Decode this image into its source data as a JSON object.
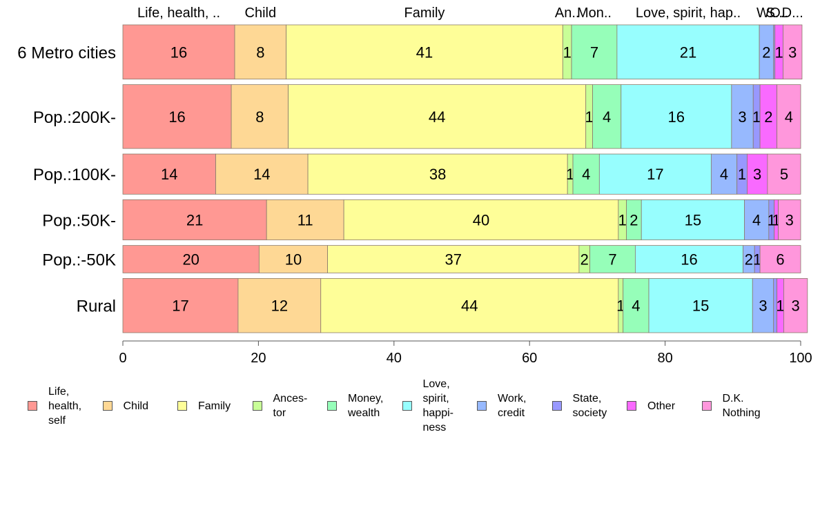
{
  "chart_data": {
    "type": "bar",
    "orientation": "horizontal",
    "stacked": true,
    "title": "",
    "xlabel": "",
    "ylabel": "",
    "xlim": [
      0,
      100
    ],
    "x_ticks": [
      "0",
      "20",
      "40",
      "60",
      "80",
      "100"
    ],
    "top_labels": [
      "Life, health, ..",
      "Child",
      "Family",
      "An..",
      "Mon..",
      "Love, spirit, hap..",
      "W..",
      "S..",
      "O..",
      "D..."
    ],
    "categories": [
      "6 Metro cities",
      "Pop.:200K-",
      "Pop.:100K-",
      "Pop.:50K-",
      "Pop.:-50K",
      "Rural"
    ],
    "bar_relative_widths": [
      85,
      100,
      63,
      63,
      43,
      85
    ],
    "series": [
      {
        "name": "Life, health, self",
        "legend": "Life,\nhealth,\nself",
        "color": "#FF9893",
        "values": [
          16.5,
          16.0,
          13.7,
          21.2,
          20.1,
          17.0
        ],
        "labels": [
          "16",
          "16",
          "14",
          "21",
          "20",
          "17"
        ]
      },
      {
        "name": "Child",
        "legend": "Child",
        "color": "#FED895",
        "values": [
          7.6,
          8.4,
          13.6,
          11.4,
          10.1,
          12.2
        ],
        "labels": [
          "8",
          "8",
          "14",
          "11",
          "10",
          "12"
        ]
      },
      {
        "name": "Family",
        "legend": "Family",
        "color": "#FEFE98",
        "values": [
          40.8,
          43.9,
          38.3,
          40.5,
          37.1,
          43.9
        ],
        "labels": [
          "41",
          "44",
          "38",
          "40",
          "37",
          "44"
        ]
      },
      {
        "name": "Ancestor",
        "legend": "Ances-\ntor",
        "color": "#C8FE97",
        "values": [
          1.3,
          1.0,
          0.8,
          1.2,
          1.6,
          0.7
        ],
        "labels": [
          "1",
          "1",
          "1",
          "1",
          "2",
          "1"
        ]
      },
      {
        "name": "Money, wealth",
        "legend": "Money,\nwealth",
        "color": "#96FEB9",
        "values": [
          6.7,
          4.2,
          3.9,
          2.2,
          6.7,
          3.8
        ],
        "labels": [
          "7",
          "4",
          "4",
          "2",
          "7",
          "4"
        ]
      },
      {
        "name": "Love, spirit, happiness",
        "legend": "Love,\nspirit,\nhappi-\nness",
        "color": "#97FEFE",
        "values": [
          21.0,
          16.3,
          16.5,
          15.2,
          15.9,
          15.3
        ],
        "labels": [
          "21",
          "16",
          "17",
          "15",
          "16",
          "15"
        ]
      },
      {
        "name": "Work, credit",
        "legend": "Work,\ncredit",
        "color": "#97B9FE",
        "values": [
          2.1,
          3.2,
          3.8,
          3.6,
          1.7,
          3.1
        ],
        "labels": [
          "2",
          "3",
          "4",
          "4",
          "2",
          "3"
        ]
      },
      {
        "name": "State, society",
        "legend": "State,\nsociety",
        "color": "#9898FE",
        "values": [
          0.2,
          1.0,
          1.5,
          0.8,
          0.8,
          0.5
        ],
        "labels": [
          "",
          "1",
          "1",
          "1",
          "1",
          ""
        ]
      },
      {
        "name": "Other",
        "legend": "Other",
        "color": "#F96AFF",
        "values": [
          1.2,
          2.5,
          3.0,
          0.6,
          0.0,
          1.0
        ],
        "labels": [
          "1",
          "2",
          "3",
          "1",
          "",
          "1"
        ]
      },
      {
        "name": "D.K. Nothing",
        "legend": "D.K.\nNothing",
        "color": "#FF97DC",
        "values": [
          2.8,
          3.5,
          4.9,
          3.3,
          6.0,
          3.5
        ],
        "labels": [
          "3",
          "4",
          "5",
          "3",
          "6",
          "3"
        ]
      }
    ],
    "grid": false,
    "legend_position": "bottom"
  }
}
